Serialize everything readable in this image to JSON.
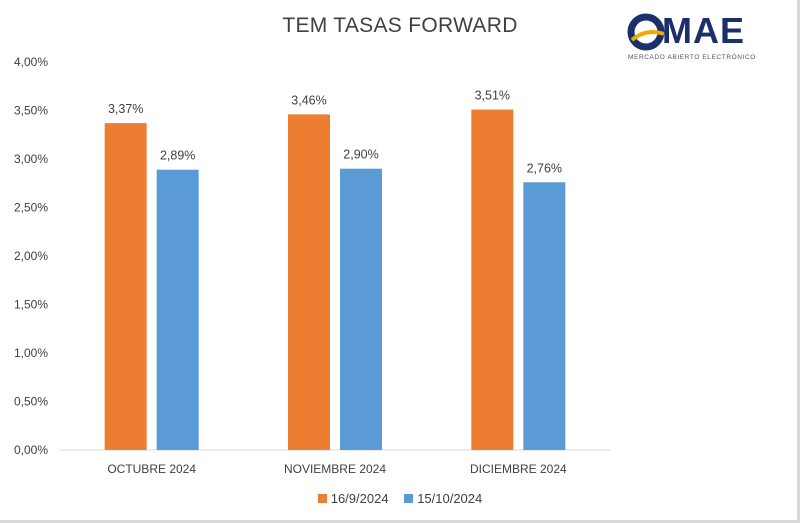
{
  "chart_data": {
    "type": "bar",
    "title": "TEM TASAS FORWARD",
    "categories": [
      "OCTUBRE 2024",
      "NOVIEMBRE 2024",
      "DICIEMBRE 2024"
    ],
    "series": [
      {
        "name": "16/9/2024",
        "color": "#ed7d31",
        "values": [
          3.37,
          3.46,
          3.51
        ],
        "labels": [
          "3,37%",
          "3,46%",
          "3,51%"
        ]
      },
      {
        "name": "15/10/2024",
        "color": "#5b9bd5",
        "values": [
          2.89,
          2.9,
          2.76
        ],
        "labels": [
          "2,89%",
          "2,90%",
          "2,76%"
        ]
      }
    ],
    "ylim": [
      0,
      4.0
    ],
    "yticks": [
      "0,00%",
      "0,50%",
      "1,00%",
      "1,50%",
      "2,00%",
      "2,50%",
      "3,00%",
      "3,50%",
      "4,00%"
    ],
    "grid": false,
    "legend_position": "bottom"
  },
  "logo": {
    "text": "OMAE",
    "subtitle": "MERCADO ABIERTO ELECTRÓNICO"
  }
}
